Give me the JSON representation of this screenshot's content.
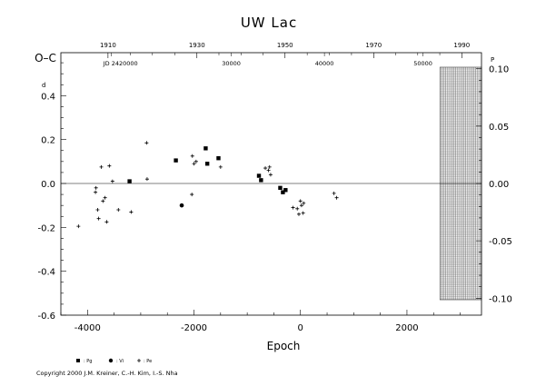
{
  "chart_data": {
    "type": "scatter",
    "title": "UW Lac",
    "xlabel": "Epoch",
    "ylabel": "O–C",
    "left_axis_unit": "d",
    "right_axis_unit": "P",
    "xlim": [
      -4500,
      3400
    ],
    "ylim": [
      -0.6,
      0.6
    ],
    "right_ylim": [
      -0.1,
      0.1
    ],
    "grid": false,
    "legend_placement": "bottom-left",
    "x_ticks": [
      {
        "value": -4000,
        "label": "-4000"
      },
      {
        "value": -2000,
        "label": "-2000"
      },
      {
        "value": 0,
        "label": "0"
      },
      {
        "value": 2000,
        "label": "2000"
      }
    ],
    "y_ticks": [
      {
        "value": 0.4,
        "label": "0.4"
      },
      {
        "value": 0.2,
        "label": "0.2"
      },
      {
        "value": 0.0,
        "label": "0.0"
      },
      {
        "value": -0.2,
        "label": "-0.2"
      },
      {
        "value": -0.4,
        "label": "-0.4"
      },
      {
        "value": -0.6,
        "label": "-0.6"
      }
    ],
    "right_y_ticks": [
      {
        "value": 0.1,
        "label": "0.10"
      },
      {
        "value": 0.05,
        "label": "0.05"
      },
      {
        "value": 0.0,
        "label": "0.00"
      },
      {
        "value": -0.05,
        "label": "-0.05"
      },
      {
        "value": -0.1,
        "label": "-0.10"
      }
    ],
    "year_axis": [
      {
        "x": -3615,
        "label": "1910"
      },
      {
        "x": -1945,
        "label": "1930"
      },
      {
        "x": -290,
        "label": "1950"
      },
      {
        "x": 1375,
        "label": "1970"
      },
      {
        "x": 3030,
        "label": "1990"
      }
    ],
    "jd_axis": [
      {
        "x": -3550,
        "label": "JD 2420000"
      },
      {
        "x": -1300,
        "label": "30000"
      },
      {
        "x": 450,
        "label": "40000"
      },
      {
        "x": 2300,
        "label": "50000"
      }
    ],
    "shaded_region": {
      "x_from": 2620,
      "x_to": 3400
    },
    "series": [
      {
        "name": ": Pg",
        "marker": "square",
        "points": [
          {
            "x": -3210,
            "y": 0.01
          },
          {
            "x": -2340,
            "y": 0.105
          },
          {
            "x": -1780,
            "y": 0.16
          },
          {
            "x": -1750,
            "y": 0.09
          },
          {
            "x": -1540,
            "y": 0.115
          },
          {
            "x": -780,
            "y": 0.035
          },
          {
            "x": -740,
            "y": 0.015
          },
          {
            "x": -380,
            "y": -0.02
          },
          {
            "x": -330,
            "y": -0.04
          },
          {
            "x": -280,
            "y": -0.03
          }
        ]
      },
      {
        "name": ": Vi",
        "marker": "circle",
        "points": [
          {
            "x": -2230,
            "y": -0.1
          }
        ]
      },
      {
        "name": ": Pe",
        "marker": "plus",
        "points": [
          {
            "x": -4170,
            "y": -0.195
          },
          {
            "x": -3850,
            "y": -0.04
          },
          {
            "x": -3840,
            "y": -0.02
          },
          {
            "x": -3810,
            "y": -0.12
          },
          {
            "x": -3790,
            "y": -0.16
          },
          {
            "x": -3740,
            "y": 0.075
          },
          {
            "x": -3710,
            "y": -0.08
          },
          {
            "x": -3670,
            "y": -0.065
          },
          {
            "x": -3640,
            "y": -0.175
          },
          {
            "x": -3590,
            "y": 0.08
          },
          {
            "x": -3530,
            "y": 0.01
          },
          {
            "x": -3420,
            "y": -0.12
          },
          {
            "x": -3180,
            "y": -0.13
          },
          {
            "x": -2890,
            "y": 0.185
          },
          {
            "x": -2880,
            "y": 0.02
          },
          {
            "x": -2040,
            "y": -0.05
          },
          {
            "x": -2030,
            "y": 0.125
          },
          {
            "x": -2000,
            "y": 0.09
          },
          {
            "x": -1960,
            "y": 0.1
          },
          {
            "x": -1500,
            "y": 0.075
          },
          {
            "x": -660,
            "y": 0.07
          },
          {
            "x": -600,
            "y": 0.06
          },
          {
            "x": -560,
            "y": 0.04
          },
          {
            "x": -580,
            "y": 0.075
          },
          {
            "x": -140,
            "y": -0.11
          },
          {
            "x": -60,
            "y": -0.115
          },
          {
            "x": -30,
            "y": -0.14
          },
          {
            "x": 0,
            "y": -0.08
          },
          {
            "x": 20,
            "y": -0.1
          },
          {
            "x": 50,
            "y": -0.135
          },
          {
            "x": 60,
            "y": -0.09
          },
          {
            "x": 630,
            "y": -0.045
          },
          {
            "x": 680,
            "y": -0.065
          }
        ]
      }
    ],
    "legend": [
      ": Pg",
      ": Vi",
      ": Pe"
    ]
  },
  "footer": {
    "copyright": "Copyright 2000 J.M. Kreiner, C.-H. Kim, I.-S. Nha"
  }
}
